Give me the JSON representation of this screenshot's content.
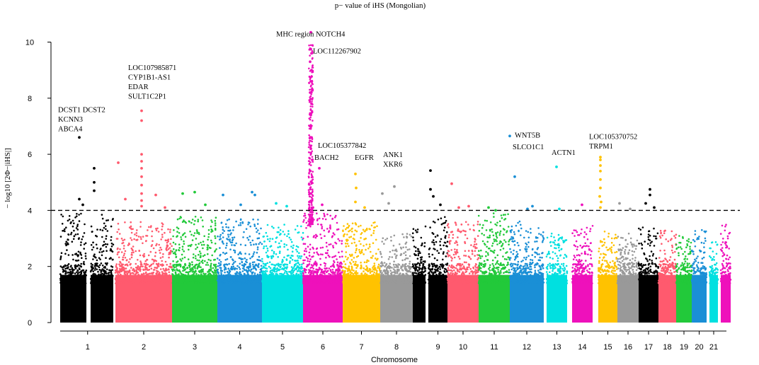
{
  "chart_data": {
    "type": "scatter",
    "subtype": "manhattan",
    "title": "p− value of iHS (Mongolian)",
    "xlabel": "Chromosome",
    "ylabel": "− log10 [2Φ−|iHS|]",
    "ylim": [
      0,
      10.6
    ],
    "yticks": [
      0,
      2,
      4,
      6,
      8,
      10
    ],
    "threshold": 4,
    "chromosomes": [
      {
        "label": "1",
        "color": "#000000",
        "spans": [
          [
            85,
            122
          ],
          [
            128,
            160
          ]
        ],
        "max": 3.9,
        "extra_peak": true
      },
      {
        "label": "2",
        "color": "#ff5a6e",
        "spans": [
          [
            163,
            243
          ]
        ],
        "max": 3.6
      },
      {
        "label": "3",
        "color": "#22c93a",
        "spans": [
          [
            243,
            307
          ]
        ],
        "max": 3.8
      },
      {
        "label": "4",
        "color": "#1a8fd6",
        "spans": [
          [
            307,
            370
          ]
        ],
        "max": 3.7
      },
      {
        "label": "5",
        "color": "#00e0e0",
        "spans": [
          [
            370,
            428
          ]
        ],
        "max": 3.5
      },
      {
        "label": "6",
        "color": "#ee11bb",
        "spans": [
          [
            428,
            484
          ]
        ],
        "max": 3.9,
        "extra_peak": true
      },
      {
        "label": "7",
        "color": "#ffc200",
        "spans": [
          [
            484,
            537
          ]
        ],
        "max": 3.6
      },
      {
        "label": "8",
        "color": "#999999",
        "spans": [
          [
            537,
            583
          ]
        ],
        "max": 3.2
      },
      {
        "label": "",
        "color": "#000000",
        "spans": [
          [
            583,
            601
          ]
        ],
        "max": 3.5
      },
      {
        "label": "9",
        "color": "#000000",
        "spans": [
          [
            605,
            632
          ]
        ],
        "max": 3.8
      },
      {
        "label": "10",
        "color": "#ff5a6e",
        "spans": [
          [
            632,
            676
          ]
        ],
        "max": 3.6
      },
      {
        "label": "11",
        "color": "#22c93a",
        "spans": [
          [
            676,
            720
          ]
        ],
        "max": 3.9
      },
      {
        "label": "12",
        "color": "#1a8fd6",
        "spans": [
          [
            720,
            768
          ]
        ],
        "max": 3.7
      },
      {
        "label": "13",
        "color": "#00e0e0",
        "spans": [
          [
            772,
            801
          ]
        ],
        "max": 3.2
      },
      {
        "label": "14",
        "color": "#ee11bb",
        "spans": [
          [
            808,
            837
          ]
        ],
        "max": 3.5
      },
      {
        "label": "15",
        "color": "#ffc200",
        "spans": [
          [
            845,
            872
          ]
        ],
        "max": 3.3
      },
      {
        "label": "16",
        "color": "#999999",
        "spans": [
          [
            872,
            902
          ]
        ],
        "max": 3.2
      },
      {
        "label": "17",
        "color": "#000000",
        "spans": [
          [
            902,
            930
          ]
        ],
        "max": 3.4
      },
      {
        "label": "18",
        "color": "#ff5a6e",
        "spans": [
          [
            930,
            955
          ]
        ],
        "max": 3.3
      },
      {
        "label": "19",
        "color": "#22c93a",
        "spans": [
          [
            955,
            977
          ]
        ],
        "max": 3.2
      },
      {
        "label": "20",
        "color": "#1a8fd6",
        "spans": [
          [
            977,
            998
          ]
        ],
        "max": 3.3
      },
      {
        "label": "21",
        "color": "#00e0e0",
        "spans": [
          [
            1002,
            1014
          ]
        ],
        "max": 2.9
      },
      {
        "label": "",
        "color": "#ee11bb",
        "spans": [
          [
            1018,
            1032
          ]
        ],
        "max": 3.5
      }
    ],
    "peaks": [
      {
        "chrom": "1",
        "points": [
          [
            112,
            6.6
          ],
          [
            133,
            5.5
          ],
          [
            133,
            5.0
          ],
          [
            133,
            4.7
          ],
          [
            112,
            4.4
          ],
          [
            117,
            4.2
          ]
        ]
      },
      {
        "chrom": "2",
        "points": [
          [
            200,
            7.55
          ],
          [
            200,
            7.2
          ],
          [
            200,
            6.0
          ],
          [
            200,
            5.75
          ],
          [
            200,
            5.5
          ],
          [
            200,
            5.2
          ],
          [
            167,
            5.7
          ],
          [
            200,
            4.9
          ],
          [
            200,
            4.6
          ],
          [
            200,
            4.35
          ],
          [
            200,
            4.15
          ],
          [
            177,
            4.4
          ],
          [
            220,
            4.55
          ],
          [
            233,
            4.1
          ]
        ]
      },
      {
        "chrom": "3",
        "points": [
          [
            258,
            4.6
          ],
          [
            275,
            4.65
          ],
          [
            290,
            4.2
          ]
        ]
      },
      {
        "chrom": "4",
        "points": [
          [
            315,
            4.55
          ],
          [
            356,
            4.65
          ],
          [
            360,
            4.55
          ],
          [
            340,
            4.2
          ]
        ]
      },
      {
        "chrom": "5",
        "points": [
          [
            390,
            4.25
          ],
          [
            405,
            4.15
          ]
        ]
      },
      {
        "chrom": "6",
        "points": [
          [
            439,
            10.35
          ],
          [
            439,
            9.75
          ],
          [
            440,
            9.6
          ],
          [
            438,
            9.3
          ],
          [
            440,
            9.0
          ],
          [
            439,
            8.6
          ],
          [
            438,
            8.2
          ],
          [
            440,
            7.8
          ],
          [
            439,
            7.4
          ],
          [
            438,
            7.0
          ],
          [
            440,
            6.6
          ],
          [
            439,
            6.2
          ],
          [
            441,
            5.8
          ],
          [
            438,
            5.4
          ],
          [
            440,
            5.0
          ],
          [
            439,
            4.6
          ],
          [
            437,
            4.3
          ],
          [
            442,
            4.1
          ],
          [
            451,
            5.5
          ],
          [
            455,
            4.2
          ]
        ]
      },
      {
        "chrom": "7",
        "points": [
          [
            502,
            5.3
          ],
          [
            503,
            4.8
          ],
          [
            502,
            4.3
          ],
          [
            515,
            4.1
          ]
        ]
      },
      {
        "chrom": "8",
        "points": [
          [
            540,
            4.6
          ],
          [
            557,
            4.85
          ],
          [
            549,
            4.25
          ]
        ]
      },
      {
        "chrom": "9",
        "points": [
          [
            608,
            5.42
          ],
          [
            608,
            4.75
          ],
          [
            612,
            4.5
          ],
          [
            622,
            4.2
          ]
        ]
      },
      {
        "chrom": "10",
        "points": [
          [
            638,
            4.95
          ],
          [
            648,
            4.1
          ],
          [
            662,
            4.15
          ]
        ]
      },
      {
        "chrom": "11",
        "points": [
          [
            690,
            4.1
          ],
          [
            700,
            4.0
          ]
        ]
      },
      {
        "chrom": "12",
        "points": [
          [
            720,
            6.65
          ],
          [
            727,
            5.2
          ],
          [
            752,
            4.15
          ],
          [
            745,
            4.05
          ]
        ]
      },
      {
        "chrom": "13",
        "points": [
          [
            786,
            5.55
          ],
          [
            790,
            4.05
          ]
        ]
      },
      {
        "chrom": "14",
        "points": [
          [
            822,
            4.2
          ]
        ]
      },
      {
        "chrom": "15",
        "points": [
          [
            848,
            5.9
          ],
          [
            848,
            5.8
          ],
          [
            848,
            5.6
          ],
          [
            848,
            5.4
          ],
          [
            848,
            5.1
          ],
          [
            848,
            4.8
          ],
          [
            847,
            4.5
          ],
          [
            849,
            4.3
          ],
          [
            848,
            4.1
          ]
        ]
      },
      {
        "chrom": "16",
        "points": [
          [
            875,
            4.25
          ],
          [
            890,
            4.05
          ]
        ]
      },
      {
        "chrom": "17",
        "points": [
          [
            918,
            4.75
          ],
          [
            918,
            4.55
          ],
          [
            912,
            4.25
          ],
          [
            924,
            4.1
          ]
        ]
      }
    ],
    "annotations": [
      {
        "id": "dcst1",
        "lines": [
          "DCST1  DCST2",
          "KCNN3",
          "ABCA4"
        ],
        "y": 7.5,
        "anchor_x": 82
      },
      {
        "id": "loc1079",
        "lines": [
          "LOC107985871",
          "CYP1B1-AS1",
          "EDAR",
          "SULT1C2P1"
        ],
        "y": 9.0,
        "anchor_x": 181
      },
      {
        "id": "mhc",
        "lines": [
          "MHC region  NOTCH4"
        ],
        "y": 10.2,
        "anchor_x": 390
      },
      {
        "id": "loc1122",
        "lines": [
          "LOC112267902"
        ],
        "y": 9.6,
        "anchor_x": 442
      },
      {
        "id": "loc1053778",
        "lines": [
          "LOC105377842"
        ],
        "y": 6.23,
        "anchor_x": 449
      },
      {
        "id": "bach2",
        "lines": [
          "BACH2"
        ],
        "y": 5.8,
        "anchor_x": 444
      },
      {
        "id": "egfr",
        "lines": [
          "EGFR"
        ],
        "y": 5.8,
        "anchor_x": 501
      },
      {
        "id": "ank1",
        "lines": [
          "ANK1",
          "XKR6"
        ],
        "y": 5.9,
        "anchor_x": 541
      },
      {
        "id": "wnt5b",
        "lines": [
          "WNT5B"
        ],
        "y": 6.6,
        "anchor_x": 727
      },
      {
        "id": "slco1c1",
        "lines": [
          "SLCO1C1"
        ],
        "y": 6.18,
        "anchor_x": 724
      },
      {
        "id": "actn1",
        "lines": [
          "ACTN1"
        ],
        "y": 5.98,
        "anchor_x": 779
      },
      {
        "id": "loc1053707",
        "lines": [
          "LOC105370752",
          "TRPM1"
        ],
        "y": 6.55,
        "anchor_x": 832
      }
    ]
  }
}
